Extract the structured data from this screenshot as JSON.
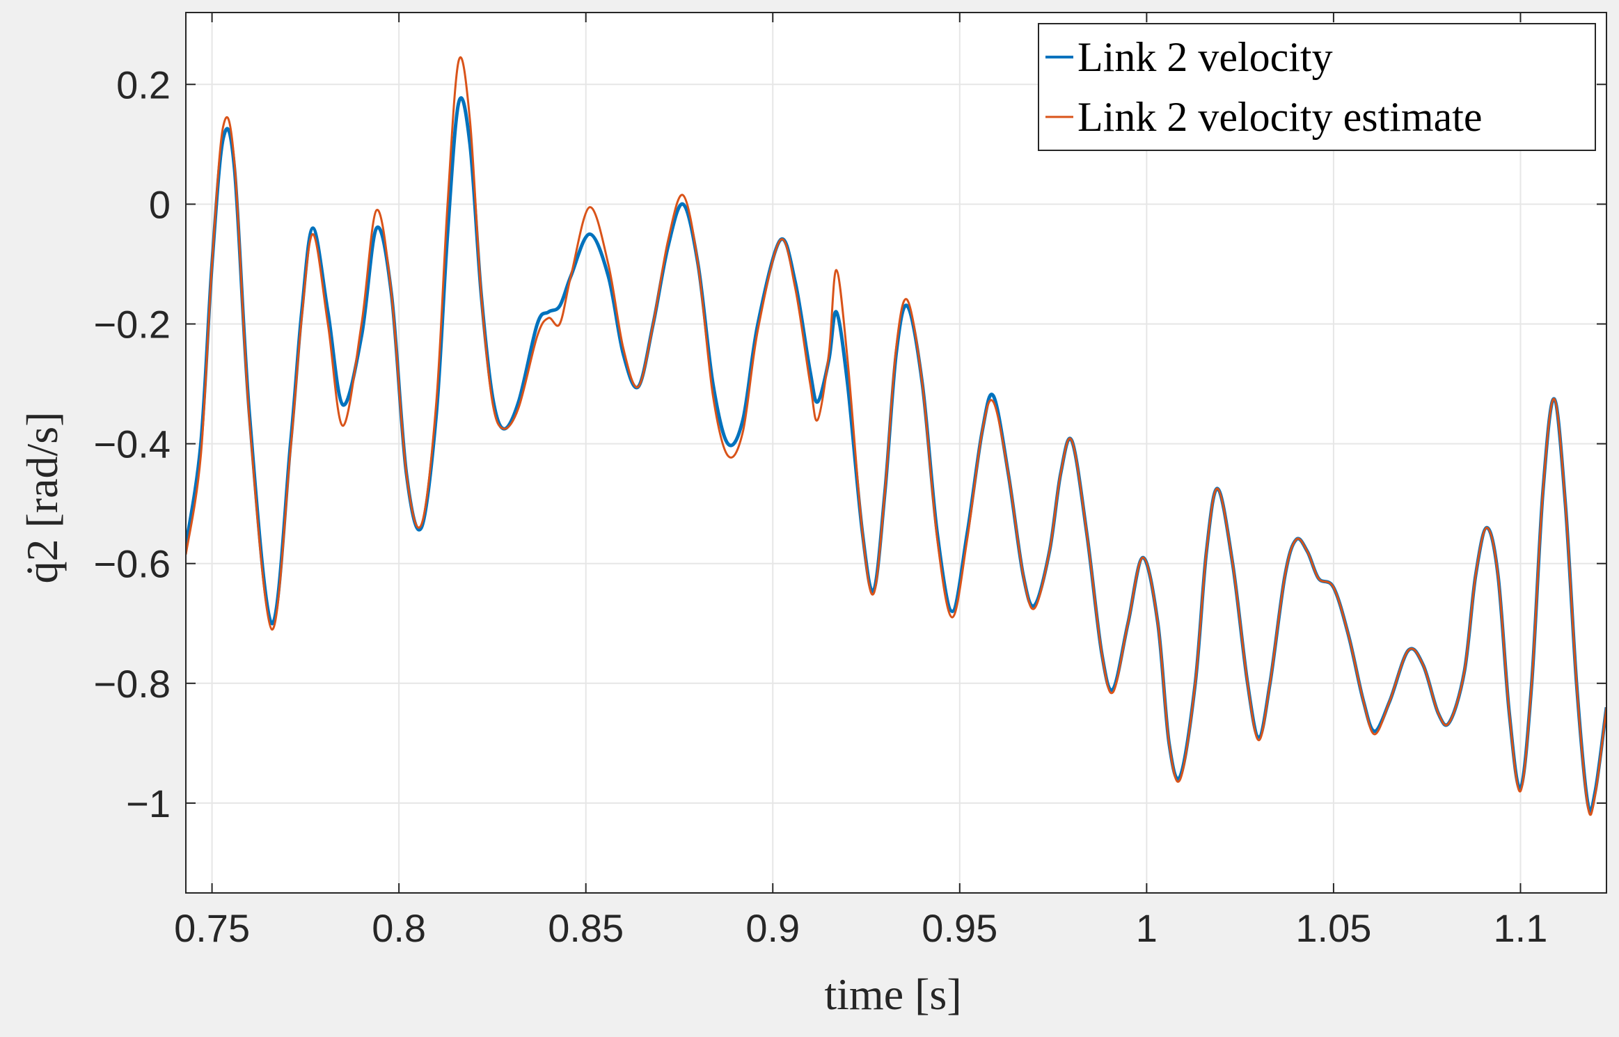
{
  "chart_data": {
    "type": "line",
    "xlabel": "time [s]",
    "ylabel": "q̇2 [rad/s]",
    "xlim": [
      0.743,
      1.123
    ],
    "ylim": [
      -1.15,
      0.32
    ],
    "xticks": [
      "0.75",
      "0.8",
      "0.85",
      "0.9",
      "0.95",
      "1",
      "1.05",
      "1.1"
    ],
    "xtick_values": [
      0.75,
      0.8,
      0.85,
      0.9,
      0.95,
      1.0,
      1.05,
      1.1
    ],
    "yticks": [
      "0.2",
      "0",
      "−0.2",
      "−0.4",
      "−0.6",
      "−0.8",
      "−1"
    ],
    "ytick_values": [
      0.2,
      0,
      -0.2,
      -0.4,
      -0.6,
      -0.8,
      -1.0
    ],
    "grid": true,
    "legend_position": "top-right",
    "series": [
      {
        "name": "Link 2 velocity",
        "color": "#0072BD",
        "points": [
          [
            0.743,
            -0.57
          ],
          [
            0.747,
            -0.4
          ],
          [
            0.75,
            -0.1
          ],
          [
            0.753,
            0.11
          ],
          [
            0.756,
            0.06
          ],
          [
            0.76,
            -0.35
          ],
          [
            0.766,
            -0.7
          ],
          [
            0.771,
            -0.4
          ],
          [
            0.774,
            -0.18
          ],
          [
            0.777,
            -0.04
          ],
          [
            0.781,
            -0.18
          ],
          [
            0.785,
            -0.335
          ],
          [
            0.79,
            -0.22
          ],
          [
            0.794,
            -0.04
          ],
          [
            0.798,
            -0.15
          ],
          [
            0.802,
            -0.45
          ],
          [
            0.806,
            -0.54
          ],
          [
            0.81,
            -0.35
          ],
          [
            0.813,
            -0.05
          ],
          [
            0.816,
            0.17
          ],
          [
            0.819,
            0.1
          ],
          [
            0.822,
            -0.15
          ],
          [
            0.825,
            -0.32
          ],
          [
            0.828,
            -0.375
          ],
          [
            0.832,
            -0.33
          ],
          [
            0.837,
            -0.2
          ],
          [
            0.84,
            -0.18
          ],
          [
            0.843,
            -0.17
          ],
          [
            0.846,
            -0.12
          ],
          [
            0.851,
            -0.05
          ],
          [
            0.856,
            -0.12
          ],
          [
            0.86,
            -0.25
          ],
          [
            0.864,
            -0.305
          ],
          [
            0.868,
            -0.2
          ],
          [
            0.872,
            -0.07
          ],
          [
            0.876,
            0.0
          ],
          [
            0.88,
            -0.1
          ],
          [
            0.884,
            -0.3
          ],
          [
            0.888,
            -0.4
          ],
          [
            0.892,
            -0.36
          ],
          [
            0.896,
            -0.2
          ],
          [
            0.902,
            -0.06
          ],
          [
            0.906,
            -0.13
          ],
          [
            0.91,
            -0.28
          ],
          [
            0.912,
            -0.33
          ],
          [
            0.915,
            -0.26
          ],
          [
            0.917,
            -0.18
          ],
          [
            0.92,
            -0.3
          ],
          [
            0.924,
            -0.55
          ],
          [
            0.927,
            -0.645
          ],
          [
            0.93,
            -0.48
          ],
          [
            0.933,
            -0.25
          ],
          [
            0.936,
            -0.17
          ],
          [
            0.94,
            -0.3
          ],
          [
            0.944,
            -0.55
          ],
          [
            0.948,
            -0.68
          ],
          [
            0.952,
            -0.55
          ],
          [
            0.956,
            -0.38
          ],
          [
            0.959,
            -0.32
          ],
          [
            0.963,
            -0.45
          ],
          [
            0.967,
            -0.62
          ],
          [
            0.97,
            -0.67
          ],
          [
            0.974,
            -0.58
          ],
          [
            0.977,
            -0.45
          ],
          [
            0.98,
            -0.395
          ],
          [
            0.984,
            -0.55
          ],
          [
            0.988,
            -0.75
          ],
          [
            0.991,
            -0.81
          ],
          [
            0.995,
            -0.7
          ],
          [
            0.999,
            -0.59
          ],
          [
            1.003,
            -0.7
          ],
          [
            1.006,
            -0.9
          ],
          [
            1.009,
            -0.955
          ],
          [
            1.013,
            -0.8
          ],
          [
            1.016,
            -0.58
          ],
          [
            1.019,
            -0.475
          ],
          [
            1.023,
            -0.6
          ],
          [
            1.027,
            -0.8
          ],
          [
            1.03,
            -0.89
          ],
          [
            1.033,
            -0.8
          ],
          [
            1.037,
            -0.62
          ],
          [
            1.04,
            -0.56
          ],
          [
            1.043,
            -0.58
          ],
          [
            1.046,
            -0.625
          ],
          [
            1.05,
            -0.64
          ],
          [
            1.054,
            -0.72
          ],
          [
            1.058,
            -0.83
          ],
          [
            1.061,
            -0.88
          ],
          [
            1.065,
            -0.83
          ],
          [
            1.07,
            -0.745
          ],
          [
            1.074,
            -0.77
          ],
          [
            1.078,
            -0.85
          ],
          [
            1.081,
            -0.865
          ],
          [
            1.085,
            -0.78
          ],
          [
            1.088,
            -0.62
          ],
          [
            1.091,
            -0.54
          ],
          [
            1.094,
            -0.62
          ],
          [
            1.097,
            -0.85
          ],
          [
            1.1,
            -0.975
          ],
          [
            1.103,
            -0.8
          ],
          [
            1.106,
            -0.48
          ],
          [
            1.109,
            -0.325
          ],
          [
            1.112,
            -0.5
          ],
          [
            1.115,
            -0.8
          ],
          [
            1.118,
            -1.0
          ],
          [
            1.12,
            -0.98
          ],
          [
            1.123,
            -0.84
          ]
        ]
      },
      {
        "name": "Link 2 velocity estimate",
        "color": "#D95319",
        "points": [
          [
            0.743,
            -0.585
          ],
          [
            0.747,
            -0.42
          ],
          [
            0.75,
            -0.1
          ],
          [
            0.753,
            0.13
          ],
          [
            0.756,
            0.07
          ],
          [
            0.76,
            -0.36
          ],
          [
            0.766,
            -0.71
          ],
          [
            0.771,
            -0.41
          ],
          [
            0.774,
            -0.19
          ],
          [
            0.777,
            -0.05
          ],
          [
            0.781,
            -0.2
          ],
          [
            0.785,
            -0.37
          ],
          [
            0.79,
            -0.2
          ],
          [
            0.794,
            -0.01
          ],
          [
            0.798,
            -0.15
          ],
          [
            0.802,
            -0.45
          ],
          [
            0.806,
            -0.535
          ],
          [
            0.81,
            -0.33
          ],
          [
            0.813,
            0.0
          ],
          [
            0.816,
            0.24
          ],
          [
            0.819,
            0.14
          ],
          [
            0.822,
            -0.15
          ],
          [
            0.825,
            -0.33
          ],
          [
            0.828,
            -0.375
          ],
          [
            0.832,
            -0.34
          ],
          [
            0.837,
            -0.22
          ],
          [
            0.84,
            -0.19
          ],
          [
            0.843,
            -0.2
          ],
          [
            0.846,
            -0.12
          ],
          [
            0.851,
            -0.005
          ],
          [
            0.856,
            -0.1
          ],
          [
            0.86,
            -0.24
          ],
          [
            0.864,
            -0.305
          ],
          [
            0.868,
            -0.2
          ],
          [
            0.872,
            -0.06
          ],
          [
            0.876,
            0.015
          ],
          [
            0.88,
            -0.1
          ],
          [
            0.884,
            -0.32
          ],
          [
            0.888,
            -0.42
          ],
          [
            0.892,
            -0.38
          ],
          [
            0.896,
            -0.21
          ],
          [
            0.902,
            -0.06
          ],
          [
            0.906,
            -0.14
          ],
          [
            0.91,
            -0.3
          ],
          [
            0.912,
            -0.36
          ],
          [
            0.915,
            -0.25
          ],
          [
            0.917,
            -0.11
          ],
          [
            0.92,
            -0.26
          ],
          [
            0.924,
            -0.55
          ],
          [
            0.927,
            -0.65
          ],
          [
            0.93,
            -0.48
          ],
          [
            0.933,
            -0.24
          ],
          [
            0.936,
            -0.16
          ],
          [
            0.94,
            -0.3
          ],
          [
            0.944,
            -0.56
          ],
          [
            0.948,
            -0.69
          ],
          [
            0.952,
            -0.56
          ],
          [
            0.956,
            -0.38
          ],
          [
            0.959,
            -0.33
          ],
          [
            0.963,
            -0.45
          ],
          [
            0.967,
            -0.62
          ],
          [
            0.97,
            -0.675
          ],
          [
            0.974,
            -0.58
          ],
          [
            0.977,
            -0.45
          ],
          [
            0.98,
            -0.395
          ],
          [
            0.984,
            -0.55
          ],
          [
            0.988,
            -0.75
          ],
          [
            0.991,
            -0.815
          ],
          [
            0.995,
            -0.7
          ],
          [
            0.999,
            -0.59
          ],
          [
            1.003,
            -0.7
          ],
          [
            1.006,
            -0.9
          ],
          [
            1.009,
            -0.96
          ],
          [
            1.013,
            -0.8
          ],
          [
            1.016,
            -0.58
          ],
          [
            1.019,
            -0.475
          ],
          [
            1.023,
            -0.6
          ],
          [
            1.027,
            -0.8
          ],
          [
            1.03,
            -0.895
          ],
          [
            1.033,
            -0.8
          ],
          [
            1.037,
            -0.62
          ],
          [
            1.04,
            -0.56
          ],
          [
            1.043,
            -0.58
          ],
          [
            1.046,
            -0.625
          ],
          [
            1.05,
            -0.64
          ],
          [
            1.054,
            -0.72
          ],
          [
            1.058,
            -0.83
          ],
          [
            1.061,
            -0.885
          ],
          [
            1.065,
            -0.83
          ],
          [
            1.07,
            -0.745
          ],
          [
            1.074,
            -0.77
          ],
          [
            1.078,
            -0.85
          ],
          [
            1.081,
            -0.865
          ],
          [
            1.085,
            -0.78
          ],
          [
            1.088,
            -0.62
          ],
          [
            1.091,
            -0.54
          ],
          [
            1.094,
            -0.62
          ],
          [
            1.097,
            -0.85
          ],
          [
            1.1,
            -0.98
          ],
          [
            1.103,
            -0.8
          ],
          [
            1.106,
            -0.48
          ],
          [
            1.109,
            -0.325
          ],
          [
            1.112,
            -0.5
          ],
          [
            1.115,
            -0.8
          ],
          [
            1.118,
            -1.005
          ],
          [
            1.12,
            -0.985
          ],
          [
            1.123,
            -0.84
          ]
        ]
      }
    ]
  }
}
